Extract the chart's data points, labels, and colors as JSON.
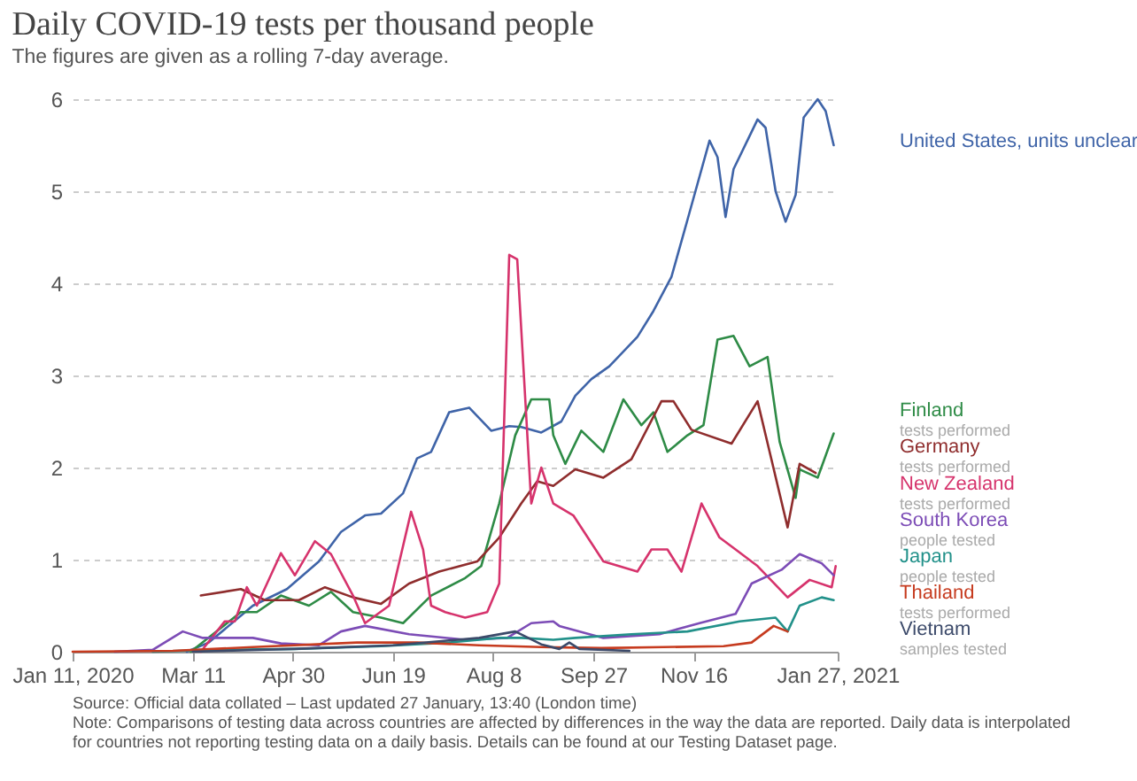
{
  "chart_data": {
    "type": "line",
    "title": "Daily COVID-19 tests per thousand people",
    "subtitle": "The figures are given as a rolling 7-day average.",
    "annotations": [
      "Source: Official data collated – Last updated 27 January, 13:40 (London time)",
      "Note: Comparisons of testing data across countries are affected by differences in the way the data are reported. Daily data is interpolated for countries not reporting testing data on a daily basis. Details can be found at our Testing Dataset page."
    ],
    "xlim": [
      "2020-01-11",
      "2021-01-27"
    ],
    "xticks": [
      {
        "value": "2020-01-11",
        "label": "Jan 11, 2020"
      },
      {
        "value": "2020-03-11",
        "label": "Mar 11"
      },
      {
        "value": "2020-04-30",
        "label": "Apr 30"
      },
      {
        "value": "2020-06-19",
        "label": "Jun 19"
      },
      {
        "value": "2020-08-08",
        "label": "Aug 8"
      },
      {
        "value": "2020-09-27",
        "label": "Sep 27"
      },
      {
        "value": "2020-11-16",
        "label": "Nov 16"
      },
      {
        "value": "2021-01-27",
        "label": "Jan 27, 2021"
      }
    ],
    "ylim": [
      0,
      6
    ],
    "yticks": [
      0,
      1,
      2,
      3,
      4,
      5,
      6
    ],
    "grid": "y",
    "legend": "right",
    "series": [
      {
        "name": "United States, units unclear",
        "color": "#3f64a8",
        "x": [
          "2020-03-08",
          "2020-03-19",
          "2020-04-10",
          "2020-04-27",
          "2020-05-13",
          "2020-05-24",
          "2020-06-05",
          "2020-06-13",
          "2020-06-24",
          "2020-07-01",
          "2020-07-08",
          "2020-07-17",
          "2020-07-27",
          "2020-08-07",
          "2020-08-16",
          "2020-08-22",
          "2020-09-01",
          "2020-09-11",
          "2020-09-18",
          "2020-09-26",
          "2020-10-05",
          "2020-10-19",
          "2020-10-27",
          "2020-11-05",
          "2020-11-13",
          "2020-11-24",
          "2020-11-28",
          "2020-12-02",
          "2020-12-06",
          "2020-12-14",
          "2020-12-18",
          "2020-12-22",
          "2020-12-27",
          "2021-01-01",
          "2021-01-06",
          "2021-01-10",
          "2021-01-17",
          "2021-01-21",
          "2021-01-25"
        ],
        "values": [
          0,
          0.1,
          0.5,
          0.68,
          0.98,
          1.3,
          1.48,
          1.5,
          1.72,
          2.1,
          2.17,
          2.6,
          2.65,
          2.4,
          2.45,
          2.44,
          2.38,
          2.5,
          2.78,
          2.96,
          3.1,
          3.42,
          3.7,
          4.07,
          4.69,
          5.55,
          5.37,
          4.72,
          5.24,
          5.6,
          5.78,
          5.69,
          5.0,
          4.67,
          4.96,
          5.8,
          6.0,
          5.87,
          5.5
        ]
      },
      {
        "name": "Finland\ntests performed",
        "color": "#2e8b46",
        "x": [
          "2020-03-10",
          "2020-03-24",
          "2020-04-04",
          "2020-04-12",
          "2020-04-24",
          "2020-05-08",
          "2020-05-19",
          "2020-05-30",
          "2020-06-13",
          "2020-06-24",
          "2020-07-08",
          "2020-07-25",
          "2020-08-02",
          "2020-08-11",
          "2020-08-19",
          "2020-08-27",
          "2020-09-05",
          "2020-09-07",
          "2020-09-13",
          "2020-09-21",
          "2020-10-02",
          "2020-10-12",
          "2020-10-21",
          "2020-10-27",
          "2020-11-03",
          "2020-11-13",
          "2020-11-21",
          "2020-11-28",
          "2020-12-06",
          "2020-12-14",
          "2020-12-23",
          "2020-12-29",
          "2021-01-06",
          "2021-01-08",
          "2021-01-17",
          "2021-01-25"
        ],
        "values": [
          0,
          0.24,
          0.43,
          0.43,
          0.61,
          0.5,
          0.65,
          0.43,
          0.37,
          0.31,
          0.61,
          0.8,
          0.93,
          1.61,
          2.35,
          2.74,
          2.74,
          2.35,
          2.04,
          2.4,
          2.17,
          2.74,
          2.46,
          2.6,
          2.17,
          2.35,
          2.46,
          3.39,
          3.43,
          3.1,
          3.2,
          2.28,
          1.67,
          1.98,
          1.89,
          2.37
        ]
      },
      {
        "name": "Germany\ntests performed",
        "color": "#8f2d2d",
        "x": [
          "2020-03-15",
          "2020-04-04",
          "2020-04-16",
          "2020-05-03",
          "2020-05-16",
          "2020-05-30",
          "2020-06-13",
          "2020-06-27",
          "2020-07-12",
          "2020-07-31",
          "2020-08-11",
          "2020-08-22",
          "2020-08-30",
          "2020-09-07",
          "2020-09-18",
          "2020-10-02",
          "2020-10-16",
          "2020-10-31",
          "2020-11-06",
          "2020-11-15",
          "2020-12-05",
          "2020-12-18",
          "2021-01-02",
          "2021-01-08",
          "2021-01-16"
        ],
        "values": [
          0.61,
          0.68,
          0.56,
          0.56,
          0.7,
          0.59,
          0.52,
          0.74,
          0.87,
          0.98,
          1.24,
          1.61,
          1.85,
          1.8,
          1.98,
          1.89,
          2.09,
          2.72,
          2.72,
          2.41,
          2.26,
          2.72,
          1.35,
          2.04,
          1.94
        ]
      },
      {
        "name": "New Zealand\ntests performed",
        "color": "#d6336c",
        "x": [
          "2020-03-15",
          "2020-03-27",
          "2020-04-01",
          "2020-04-07",
          "2020-04-12",
          "2020-04-24",
          "2020-05-01",
          "2020-05-11",
          "2020-05-19",
          "2020-05-30",
          "2020-06-05",
          "2020-06-17",
          "2020-06-28",
          "2020-07-04",
          "2020-07-08",
          "2020-07-15",
          "2020-07-25",
          "2020-08-05",
          "2020-08-11",
          "2020-08-16",
          "2020-08-20",
          "2020-08-27",
          "2020-09-01",
          "2020-09-07",
          "2020-09-17",
          "2020-10-02",
          "2020-10-19",
          "2020-10-26",
          "2020-11-03",
          "2020-11-10",
          "2020-11-20",
          "2020-11-29",
          "2020-12-07",
          "2020-12-18",
          "2021-01-02",
          "2021-01-13",
          "2021-01-24",
          "2021-01-26"
        ],
        "values": [
          0,
          0.33,
          0.33,
          0.7,
          0.5,
          1.07,
          0.83,
          1.2,
          1.06,
          0.61,
          0.31,
          0.5,
          1.52,
          1.11,
          0.5,
          0.43,
          0.37,
          0.43,
          0.74,
          4.31,
          4.26,
          1.61,
          2.0,
          1.61,
          1.48,
          0.98,
          0.87,
          1.11,
          1.11,
          0.87,
          1.61,
          1.24,
          1.11,
          0.93,
          0.59,
          0.78,
          0.7,
          0.93
        ]
      },
      {
        "name": "South Korea\npeople tested",
        "color": "#7c4cb6",
        "x": [
          "2020-02-01",
          "2020-02-20",
          "2020-03-06",
          "2020-03-16",
          "2020-04-10",
          "2020-04-24",
          "2020-05-13",
          "2020-05-24",
          "2020-06-05",
          "2020-06-27",
          "2020-07-25",
          "2020-08-15",
          "2020-08-27",
          "2020-09-07",
          "2020-09-10",
          "2020-10-02",
          "2020-10-30",
          "2020-11-19",
          "2020-12-07",
          "2020-12-15",
          "2020-12-30",
          "2021-01-08",
          "2021-01-19",
          "2021-01-25"
        ],
        "values": [
          0,
          0.02,
          0.22,
          0.15,
          0.15,
          0.09,
          0.07,
          0.22,
          0.28,
          0.19,
          0.13,
          0.15,
          0.31,
          0.33,
          0.28,
          0.15,
          0.19,
          0.31,
          0.41,
          0.74,
          0.89,
          1.06,
          0.96,
          0.83
        ]
      },
      {
        "name": "Japan\npeople tested",
        "color": "#22918a",
        "x": [
          "2020-02-20",
          "2020-03-20",
          "2020-05-01",
          "2020-06-13",
          "2020-07-17",
          "2020-08-11",
          "2020-08-22",
          "2020-09-07",
          "2020-09-18",
          "2020-10-16",
          "2020-11-13",
          "2020-12-09",
          "2020-12-27",
          "2021-01-02",
          "2021-01-08",
          "2021-01-19",
          "2021-01-25"
        ],
        "values": [
          0,
          0.02,
          0.03,
          0.06,
          0.1,
          0.15,
          0.15,
          0.13,
          0.15,
          0.19,
          0.22,
          0.33,
          0.37,
          0.22,
          0.5,
          0.59,
          0.56
        ]
      },
      {
        "name": "Thailand\ntests performed",
        "color": "#c63b1f",
        "x": [
          "2020-01-11",
          "2020-03-01",
          "2020-04-10",
          "2020-06-01",
          "2020-07-01",
          "2020-08-01",
          "2020-09-01",
          "2020-10-01",
          "2020-11-01",
          "2020-12-01",
          "2020-12-15",
          "2020-12-26",
          "2021-01-02"
        ],
        "values": [
          0,
          0.01,
          0.05,
          0.1,
          0.1,
          0.07,
          0.05,
          0.04,
          0.05,
          0.06,
          0.1,
          0.28,
          0.22
        ]
      },
      {
        "name": "Vietnam\nsamples tested",
        "color": "#3c4a6a",
        "x": [
          "2020-03-11",
          "2020-04-30",
          "2020-06-19",
          "2020-08-01",
          "2020-08-19",
          "2020-09-01",
          "2020-09-10",
          "2020-09-15",
          "2020-09-20",
          "2020-10-15"
        ],
        "values": [
          0,
          0.03,
          0.07,
          0.15,
          0.22,
          0.08,
          0.03,
          0.1,
          0.03,
          0.01
        ]
      }
    ]
  }
}
